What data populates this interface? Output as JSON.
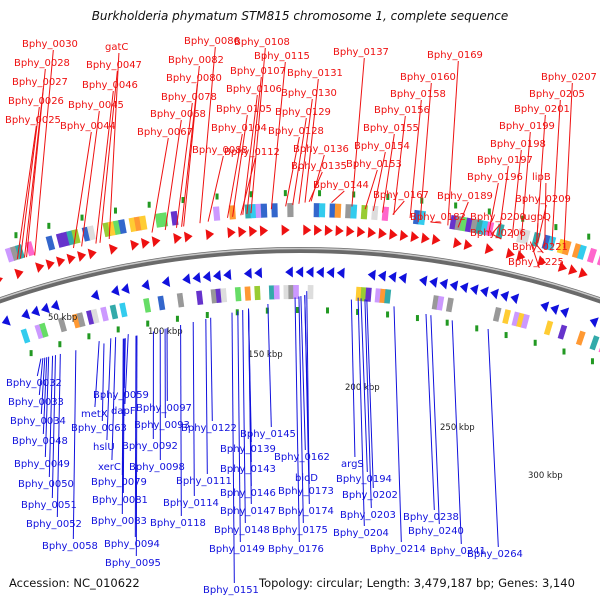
{
  "title": "Burkholderia phymatum STM815 chromosome 1, complete sequence",
  "accession": "Accession: NC_010622",
  "summary": "Topology: circular; Length: 3,479,187 bp; Genes: 3,140",
  "colors": {
    "forward": "#ee1111",
    "reverse": "#1111dd",
    "backbone": "#888888",
    "tick": "#229922"
  },
  "scale_labels": [
    "50 kbp",
    "100 kbp",
    "150 kbp",
    "200 kbp",
    "250 kbp",
    "300 kbp"
  ],
  "top_labels": [
    "Bphy_0030",
    "Bphy_0028",
    "Bphy_0027",
    "Bphy_0026",
    "Bphy_0025",
    "gatC",
    "Bphy_0047",
    "Bphy_0046",
    "Bphy_0045",
    "Bphy_0044",
    "Bphy_0086",
    "Bphy_0082",
    "Bphy_0080",
    "Bphy_0078",
    "Bphy_0068",
    "Bphy_0067",
    "Bphy_0108",
    "Bphy_0115",
    "Bphy_0107",
    "Bphy_0106",
    "Bphy_0105",
    "Bphy_0104",
    "Bphy_0088",
    "Bphy_0131",
    "Bphy_0130",
    "Bphy_0129",
    "Bphy_0128",
    "Bphy_0112",
    "Bphy_0137",
    "Bphy_0136",
    "Bphy_0135",
    "Bphy_0144",
    "Bphy_0169",
    "Bphy_0160",
    "Bphy_0158",
    "Bphy_0156",
    "Bphy_0155",
    "Bphy_0154",
    "Bphy_0153",
    "Bphy_0167",
    "Bphy_0207",
    "Bphy_0205",
    "Bphy_0201",
    "Bphy_0199",
    "Bphy_0198",
    "Bphy_0197",
    "Bphy_0196",
    "lipB",
    "Bphy_0189",
    "Bphy_0209",
    "Bphy_0182",
    "Bphy_0200",
    "ugpQ",
    "Bphy_0206",
    "Bphy_0221",
    "Bphy_0225"
  ],
  "bottom_labels": [
    "Bphy_0032",
    "Bphy_0033",
    "Bphy_0034",
    "Bphy_0048",
    "Bphy_0049",
    "Bphy_0050",
    "Bphy_0051",
    "Bphy_0052",
    "Bphy_0058",
    "Bphy_0059",
    "metX",
    "Bphy_0063",
    "hslU",
    "xerC",
    "Bphy_0079",
    "Bphy_0081",
    "Bphy_0083",
    "dapF",
    "Bphy_0092",
    "Bphy_0093",
    "Bphy_0097",
    "Bphy_0098",
    "Bphy_0094",
    "Bphy_0095",
    "Bphy_0111",
    "Bphy_0114",
    "Bphy_0118",
    "Bphy_0122",
    "Bphy_0145",
    "Bphy_0139",
    "Bphy_0143",
    "Bphy_0146",
    "Bphy_0147",
    "Bphy_0148",
    "Bphy_0149",
    "Bphy_0151",
    "Bphy_0162",
    "bioD",
    "Bphy_0173",
    "Bphy_0174",
    "Bphy_0175",
    "Bphy_0176",
    "argS",
    "Bphy_0194",
    "Bphy_0202",
    "Bphy_0203",
    "Bphy_0204",
    "Bphy_0214",
    "Bphy_0238",
    "Bphy_0240",
    "Bphy_0241",
    "Bphy_0264"
  ]
}
